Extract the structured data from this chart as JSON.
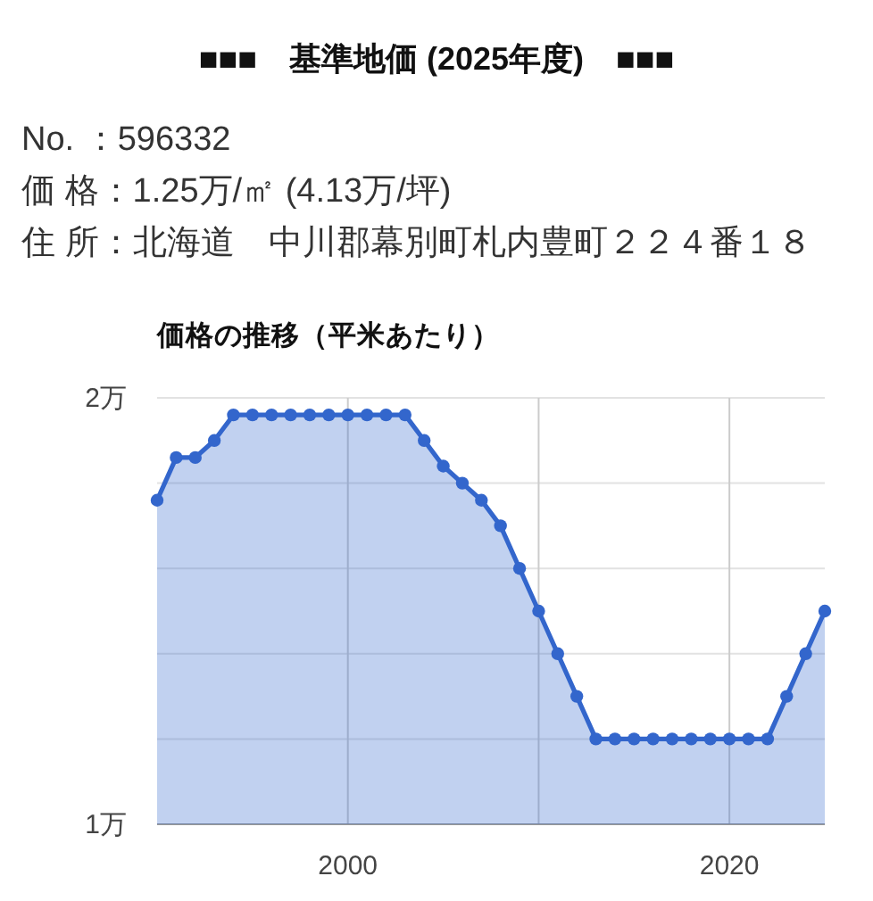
{
  "chart_data": {
    "type": "area",
    "title": "■■■　基準地価 (2025年度)　■■■",
    "annotations": [
      "No. ：596332",
      "価 格：1.25万/㎡ (4.13万/坪)",
      "住 所：北海道　中川郡幕別町札内豊町２２４番１８"
    ],
    "subtitle": "価格の推移（平米あたり）",
    "x": [
      1990,
      1991,
      1992,
      1993,
      1994,
      1995,
      1996,
      1997,
      1998,
      1999,
      2000,
      2001,
      2002,
      2003,
      2004,
      2005,
      2006,
      2007,
      2008,
      2009,
      2010,
      2011,
      2012,
      2013,
      2014,
      2015,
      2016,
      2017,
      2018,
      2019,
      2020,
      2021,
      2022,
      2023,
      2024,
      2025
    ],
    "series": [
      {
        "color": "#3366cc",
        "values": [
          1.76,
          1.86,
          1.86,
          1.9,
          1.96,
          1.96,
          1.96,
          1.96,
          1.96,
          1.96,
          1.96,
          1.96,
          1.96,
          1.96,
          1.9,
          1.84,
          1.8,
          1.76,
          1.7,
          1.6,
          1.5,
          1.4,
          1.3,
          1.2,
          1.2,
          1.2,
          1.2,
          1.2,
          1.2,
          1.2,
          1.2,
          1.2,
          1.2,
          1.3,
          1.4,
          1.5
        ]
      }
    ],
    "xlim": [
      1990,
      2025
    ],
    "xticks": [
      2000,
      {
        "value": 2010,
        "label": null
      },
      2020
    ],
    "ylim": [
      1,
      2
    ],
    "yticks": [
      {
        "value": 1,
        "label": "1万"
      },
      {
        "value": 1.2,
        "label": null
      },
      {
        "value": 1.4,
        "label": null
      },
      {
        "value": 1.6,
        "label": null
      },
      {
        "value": 1.8,
        "label": null
      },
      {
        "value": 2,
        "label": "2万"
      }
    ],
    "grid": true,
    "marker": "circle"
  }
}
